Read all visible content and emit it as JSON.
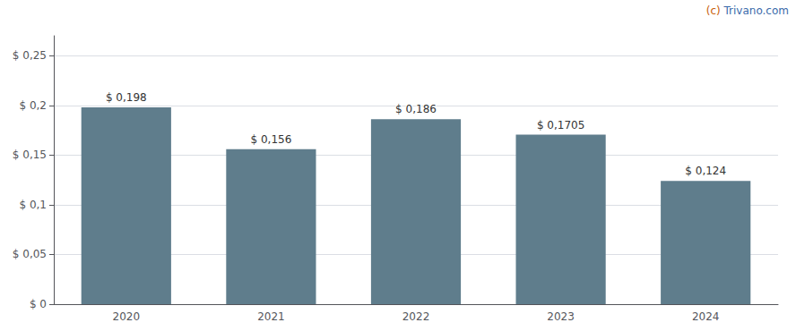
{
  "chart_data": {
    "type": "bar",
    "categories": [
      "2020",
      "2021",
      "2022",
      "2023",
      "2024"
    ],
    "values": [
      0.198,
      0.156,
      0.186,
      0.1705,
      0.124
    ],
    "value_labels": [
      "$ 0,198",
      "$ 0,156",
      "$ 0,186",
      "$ 0,1705",
      "$ 0,124"
    ],
    "data_labels": true,
    "color": "#5f7d8c",
    "ylim": [
      0,
      0.27
    ],
    "yticks": [
      {
        "value": 0,
        "label": "$ 0"
      },
      {
        "value": 0.05,
        "label": "$ 0,05"
      },
      {
        "value": 0.1,
        "label": "$ 0,1"
      },
      {
        "value": 0.15,
        "label": "$ 0,15"
      },
      {
        "value": 0.2,
        "label": "$ 0,2"
      },
      {
        "value": 0.25,
        "label": "$ 0,25"
      }
    ],
    "grid": true,
    "annotations": [
      {
        "text": "(c)",
        "color": "#c8600a"
      },
      {
        "text": "Trivano.com",
        "color": "#3a6aaa"
      }
    ]
  }
}
